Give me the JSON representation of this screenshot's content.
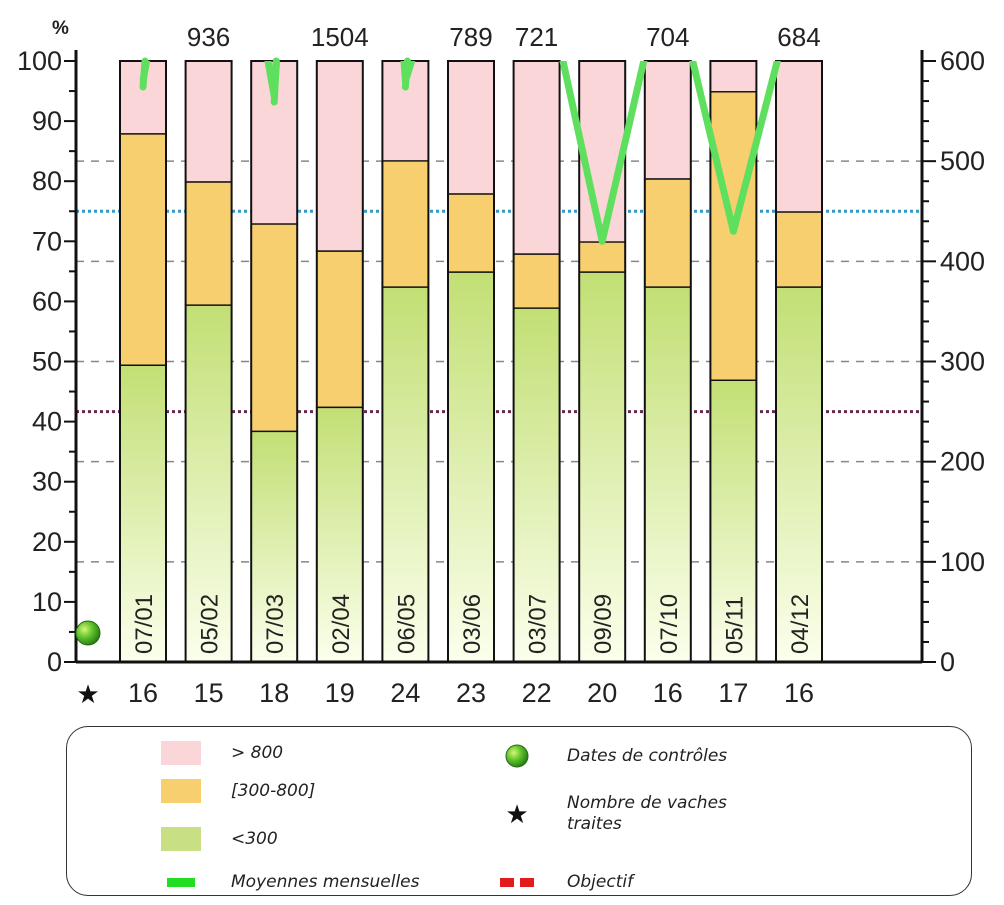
{
  "chart_data": {
    "type": "bar",
    "stacked": true,
    "unit_left": "%",
    "y_left_range": [
      0,
      100
    ],
    "y_left_ticks": [
      "0",
      "10",
      "20",
      "30",
      "40",
      "50",
      "60",
      "70",
      "80",
      "90",
      "100"
    ],
    "y_right_range": [
      0,
      600
    ],
    "y_right_ticks": [
      "0",
      "100",
      "200",
      "300",
      "400",
      "500",
      "600"
    ],
    "categories": [
      "07/01",
      "05/02",
      "07/03",
      "02/04",
      "06/05",
      "03/06",
      "03/07",
      "09/09",
      "07/10",
      "05/11",
      "04/12"
    ],
    "cow_counts": [
      "16",
      "15",
      "18",
      "19",
      "24",
      "23",
      "22",
      "20",
      "16",
      "17",
      "16"
    ],
    "series": [
      {
        "name": "<300",
        "color": "#c5e27c",
        "values": [
          49.5,
          59.5,
          38.5,
          42.5,
          62.5,
          65,
          59,
          65,
          62.5,
          47,
          62.5
        ]
      },
      {
        "name": "[300-800]",
        "color": "#f7cf6f",
        "values": [
          38.5,
          20.5,
          34.5,
          26,
          21,
          13,
          9,
          5,
          18,
          48,
          12.5
        ]
      },
      {
        "name": "> 800",
        "color": "#fbd6d8",
        "values": [
          12,
          20,
          27,
          31.5,
          16.5,
          22,
          32,
          30,
          19.5,
          5,
          25
        ]
      }
    ],
    "monthly_average": {
      "name": "Moyennes mensuelles",
      "color": "#5ee05e",
      "axis": "right",
      "labels": [
        "",
        "936",
        "",
        "1504",
        "",
        "789",
        "721",
        "",
        "704",
        "",
        "684"
      ],
      "values": [
        580,
        936,
        565,
        1504,
        580,
        789,
        721,
        420,
        704,
        430,
        684
      ]
    },
    "objectives": [
      {
        "name": "Objectif",
        "color": "#6a2a50",
        "axis": "right",
        "value": 250
      },
      {
        "color": "#3399cc",
        "axis": "right",
        "value": 450
      }
    ],
    "grid": {
      "style": "dashed",
      "axis": "right",
      "values": [
        100,
        200,
        300,
        400,
        500
      ]
    }
  },
  "legend": {
    "items": [
      {
        "label": "> 800",
        "color": "#fbd6d8"
      },
      {
        "label": "[300-800]",
        "color": "#f7cf6f"
      },
      {
        "label": "<300",
        "color": "#c5e27c"
      },
      {
        "label": "Moyennes mensuelles",
        "color": "#22dd22"
      },
      {
        "label": "Dates de contrôles",
        "icon": "green-sphere-icon"
      },
      {
        "label": "Nombre de vaches traites",
        "icon": "star-icon"
      },
      {
        "label": "Objectif",
        "color": "#e21b1b"
      }
    ]
  }
}
